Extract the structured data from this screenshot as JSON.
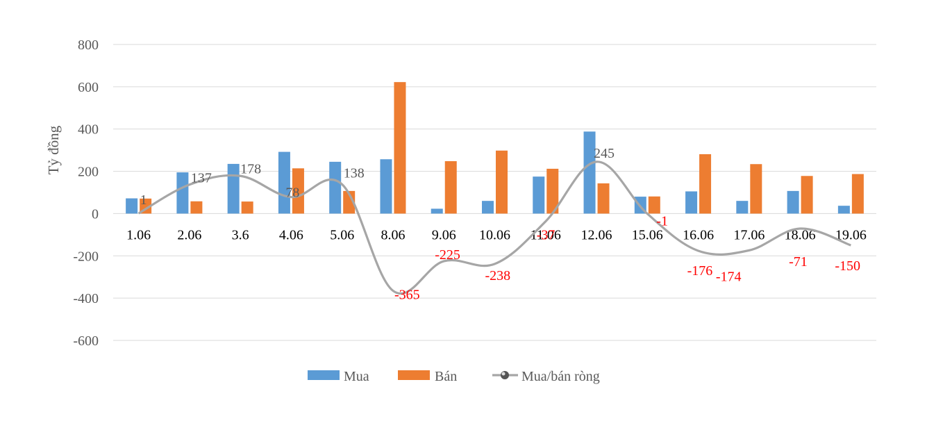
{
  "chart_data": {
    "type": "bar",
    "ylabel": "Tỷ đồng",
    "ylim": [
      -600,
      800
    ],
    "yticks": [
      800,
      600,
      400,
      200,
      0,
      -200,
      -400,
      -600
    ],
    "grid": true,
    "legend_position": "bottom",
    "categories": [
      "1.06",
      "2.06",
      "3.6",
      "4.06",
      "5.06",
      "8.06",
      "9.06",
      "10.06",
      "11.06",
      "12.06",
      "15.06",
      "16.06",
      "17.06",
      "18.06",
      "19.06"
    ],
    "series": [
      {
        "name": "Mua",
        "type": "bar",
        "color": "#5b9bd5",
        "values": [
          72,
          195,
          235,
          292,
          245,
          257,
          23,
          60,
          175,
          388,
          80,
          105,
          60,
          107,
          37
        ]
      },
      {
        "name": "Bán",
        "type": "bar",
        "color": "#ed7d31",
        "values": [
          71,
          58,
          57,
          214,
          107,
          622,
          248,
          298,
          212,
          143,
          81,
          281,
          234,
          178,
          187
        ]
      },
      {
        "name": "Mua/bán ròng",
        "type": "line",
        "color": "#a6a6a6",
        "values": [
          1,
          137,
          178,
          78,
          138,
          -365,
          -225,
          -238,
          -37,
          245,
          -1,
          -176,
          -174,
          -71,
          -150
        ],
        "labels": [
          "1",
          "137",
          "178",
          "78",
          "138",
          "-365",
          "-225",
          "-238",
          "-37",
          "245",
          "-1",
          "-176",
          "-174",
          "-71",
          "-150"
        ],
        "positive_label_color": "#595959",
        "negative_label_color": "#ff0000"
      }
    ]
  }
}
